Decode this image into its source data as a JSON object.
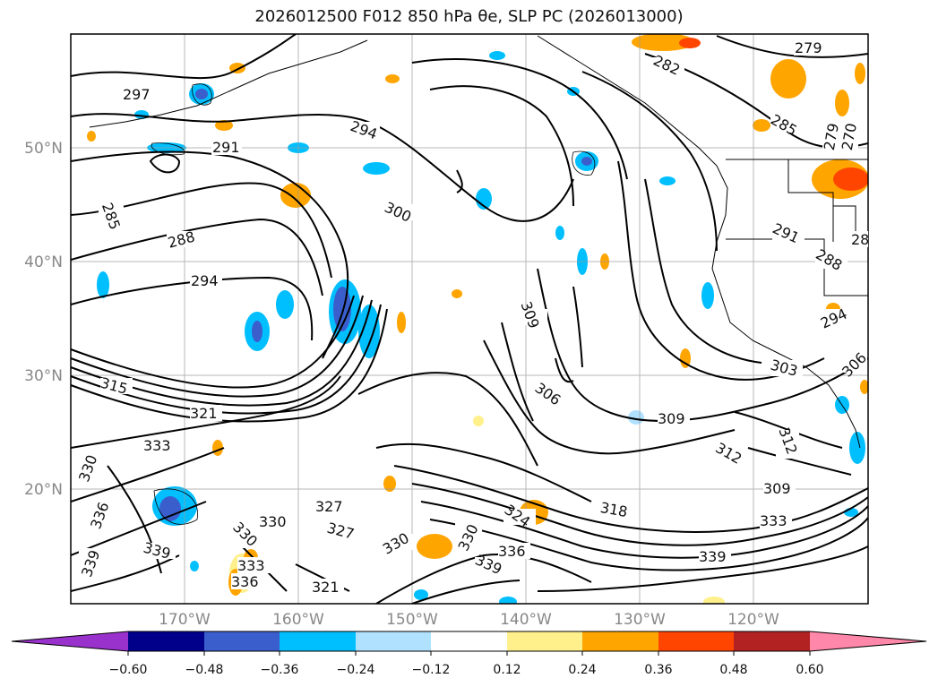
{
  "title": "2026012500 F012 850 hPa θe, SLP PC (2026013000)",
  "lat_labels": [
    "50°N",
    "40°N",
    "30°N",
    "20°N"
  ],
  "lon_labels": [
    "170°W",
    "160°W",
    "150°W",
    "140°W",
    "130°W",
    "120°W"
  ],
  "colorbar": {
    "ticks": [
      "−0.60",
      "−0.48",
      "−0.36",
      "−0.24",
      "−0.12",
      "0.12",
      "0.24",
      "0.36",
      "0.48",
      "0.60"
    ],
    "colors": [
      "#9932cc",
      "#00008b",
      "#3a5fcd",
      "#00bfff",
      "#b0e2ff",
      "#ffffff",
      "#fff08c",
      "#ffa500",
      "#ff4500",
      "#b22222",
      "#ff88aa"
    ]
  },
  "contour_labels": [
    "297",
    "291",
    "294",
    "288",
    "285",
    "294",
    "300",
    "279",
    "282",
    "285",
    "279",
    "270",
    "291",
    "288",
    "28",
    "294",
    "303",
    "306",
    "309",
    "306",
    "309",
    "312",
    "312",
    "315",
    "321",
    "333",
    "330",
    "336",
    "330",
    "327",
    "327",
    "330",
    "333",
    "336",
    "339",
    "339",
    "321",
    "330",
    "324",
    "318",
    "336",
    "339",
    "333",
    "309",
    "330",
    "339"
  ]
}
